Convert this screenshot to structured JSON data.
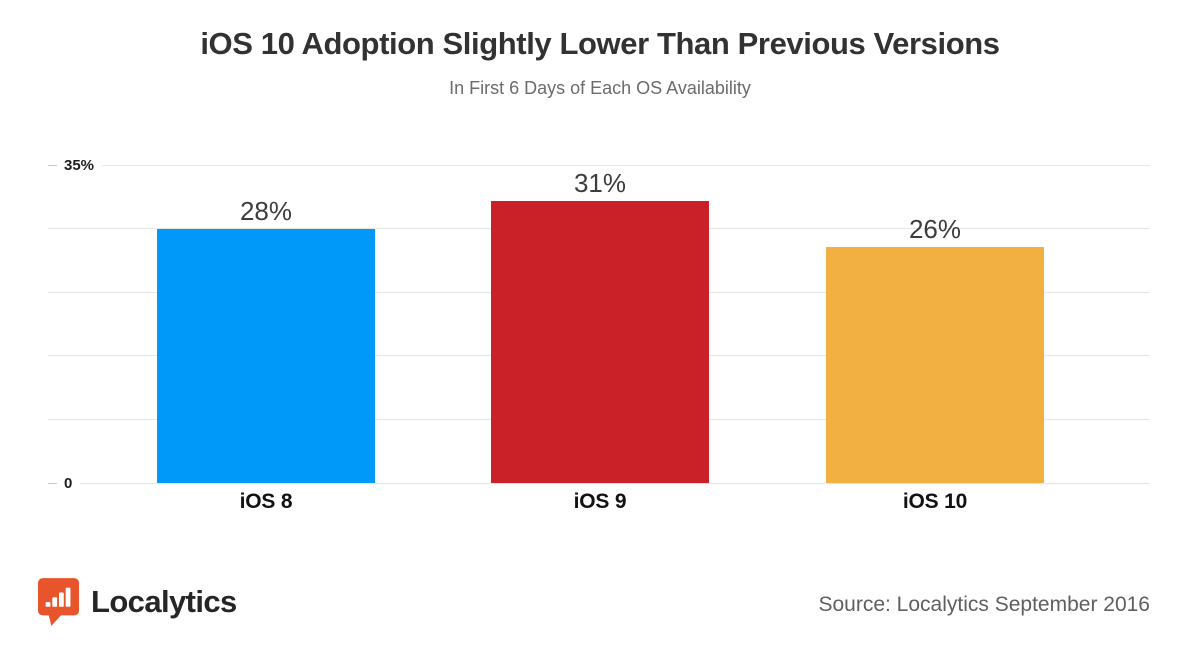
{
  "chart_data": {
    "type": "bar",
    "title": "iOS 10 Adoption Slightly Lower Than Previous Versions",
    "subtitle": "In First 6 Days of Each OS Availability",
    "categories": [
      "iOS 8",
      "iOS 9",
      "iOS 10"
    ],
    "values": [
      28,
      31,
      26
    ],
    "value_labels": [
      "28%",
      "31%",
      "26%"
    ],
    "bar_colors": [
      "#0099fa",
      "#c92127",
      "#f2b043"
    ],
    "ylim": [
      0,
      35
    ],
    "yticks": [
      {
        "value": 35,
        "label": "35%"
      },
      {
        "value": 0,
        "label": "0"
      }
    ],
    "gridlines": [
      35,
      28,
      21,
      14,
      7,
      0
    ],
    "xlabel": "",
    "ylabel": "",
    "grid": true,
    "legend": false
  },
  "footer": {
    "logo_text": "Localytics",
    "source": "Source: Localytics September 2016"
  },
  "colors": {
    "bar_blue": "#0099fa",
    "bar_red": "#c92127",
    "bar_orange": "#f2b043",
    "logo_orange": "#e8552c",
    "gridline": "#e7e5e5",
    "title_text": "#323232",
    "subtitle_text": "#6b6b6b",
    "source_text": "#5f5f5f"
  }
}
